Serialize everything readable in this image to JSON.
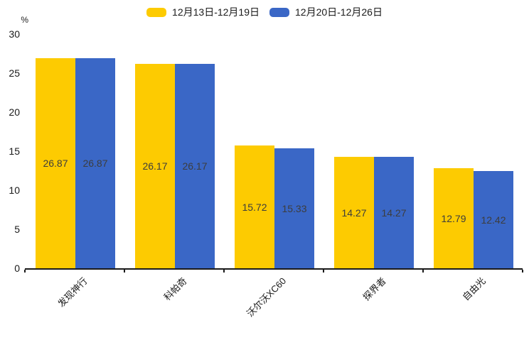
{
  "colors": {
    "background": "#ffffff",
    "axis": "#1a1a1a",
    "text": "#1a1a1a",
    "value_label": "#3d3d3d"
  },
  "chart_data": {
    "type": "bar",
    "categories": [
      "发现神行",
      "科帕奇",
      "沃尔沃XC60",
      "探界者",
      "自由光"
    ],
    "series": [
      {
        "name": "12月13日-12月19日",
        "color": "#FDCB01",
        "values": [
          26.87,
          26.17,
          15.72,
          14.27,
          12.79
        ]
      },
      {
        "name": "12月20日-12月26日",
        "color": "#3A67C6",
        "values": [
          26.87,
          26.17,
          15.33,
          14.27,
          12.42
        ]
      }
    ],
    "ylabel_unit": "%",
    "y_ticks": [
      0,
      5,
      10,
      15,
      20,
      25,
      30
    ],
    "ylim": [
      0,
      30
    ],
    "grid": false,
    "legend_position": "top-center",
    "value_labels": "inside-center",
    "x_label_rotation": -45
  }
}
